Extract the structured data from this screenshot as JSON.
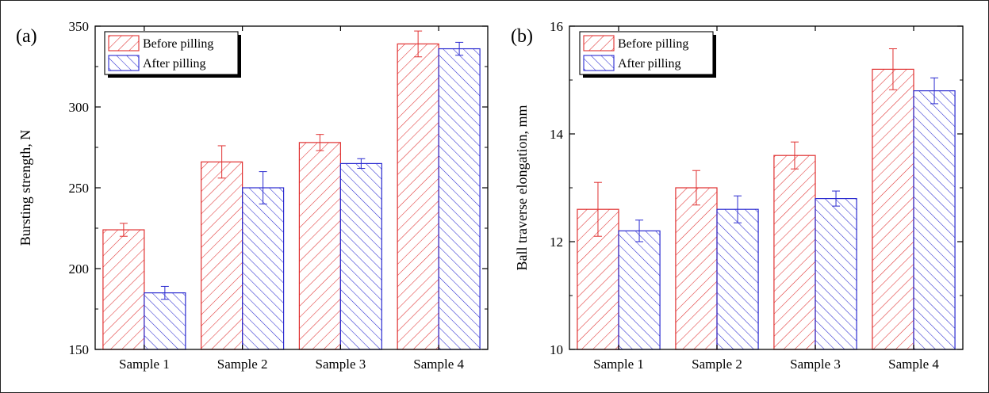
{
  "colors": {
    "before": "#e03030",
    "after": "#2b2bd0",
    "axis": "#000000"
  },
  "chart_data": [
    {
      "type": "bar",
      "panel_label": "(a)",
      "title": "",
      "xlabel": "",
      "ylabel": "Bursting strength, N",
      "categories": [
        "Sample 1",
        "Sample 2",
        "Sample 3",
        "Sample 4"
      ],
      "ylim": [
        150,
        350
      ],
      "yticks": [
        "150",
        "200",
        "250",
        "300",
        "350"
      ],
      "ytick_values": [
        150,
        200,
        250,
        300,
        350
      ],
      "grid": false,
      "legend": "top-left",
      "series": [
        {
          "name": "Before pilling",
          "pattern": "forward-hatch",
          "color": "#e03030",
          "values": [
            224,
            266,
            278,
            339
          ],
          "errors": [
            4,
            10,
            5,
            8
          ]
        },
        {
          "name": "After pilling",
          "pattern": "back-hatch",
          "color": "#2b2bd0",
          "values": [
            185,
            250,
            265,
            336
          ],
          "errors": [
            4,
            10,
            3,
            4
          ]
        }
      ]
    },
    {
      "type": "bar",
      "panel_label": "(b)",
      "title": "",
      "xlabel": "",
      "ylabel": "Ball traverse elongation, mm",
      "categories": [
        "Sample 1",
        "Sample 2",
        "Sample 3",
        "Sample 4"
      ],
      "ylim": [
        10,
        16
      ],
      "yticks": [
        "10",
        "12",
        "14",
        "16"
      ],
      "ytick_values": [
        10,
        12,
        14,
        16
      ],
      "grid": false,
      "legend": "top-left",
      "series": [
        {
          "name": "Before pilling",
          "pattern": "forward-hatch",
          "color": "#e03030",
          "values": [
            12.6,
            13.0,
            13.6,
            15.2
          ],
          "errors": [
            0.5,
            0.32,
            0.25,
            0.38
          ]
        },
        {
          "name": "After pilling",
          "pattern": "back-hatch",
          "color": "#2b2bd0",
          "values": [
            12.2,
            12.6,
            12.8,
            14.8
          ],
          "errors": [
            0.2,
            0.25,
            0.14,
            0.24
          ]
        }
      ]
    }
  ]
}
